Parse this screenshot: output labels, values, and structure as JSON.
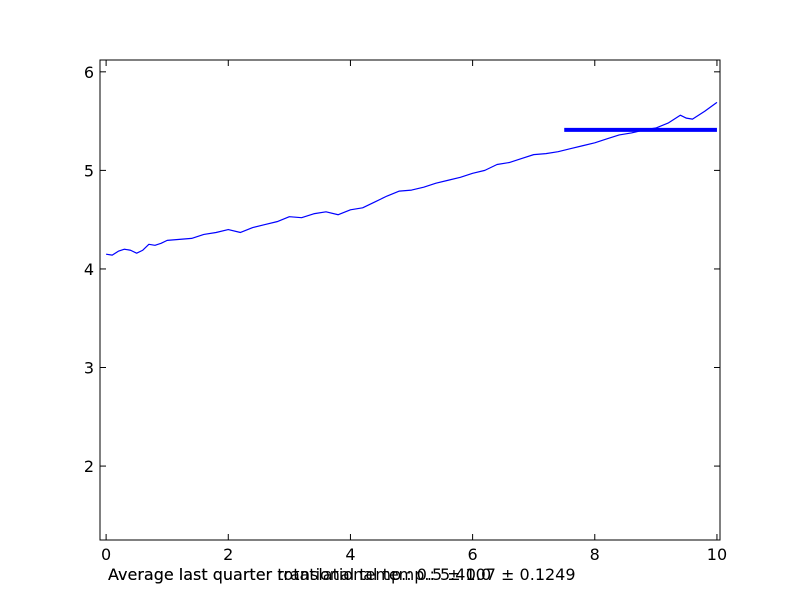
{
  "chart_data": {
    "type": "line",
    "xlim": [
      -0.1,
      10.05
    ],
    "ylim": [
      1.25,
      6.12
    ],
    "x_ticks": [
      0,
      2,
      4,
      6,
      8,
      10
    ],
    "x_tick_labels": [
      "0",
      "2",
      "4",
      "6",
      "8",
      "10"
    ],
    "y_ticks": [
      2,
      3,
      4,
      5,
      6
    ],
    "y_tick_labels": [
      "2",
      "3",
      "4",
      "5",
      "6"
    ],
    "grid": false,
    "series": [
      {
        "color": "#0000ff",
        "x": [
          0.0,
          0.1,
          0.2,
          0.3,
          0.4,
          0.5,
          0.6,
          0.7,
          0.8,
          0.9,
          1.0,
          1.2,
          1.4,
          1.6,
          1.8,
          2.0,
          2.2,
          2.4,
          2.6,
          2.8,
          3.0,
          3.2,
          3.4,
          3.6,
          3.8,
          4.0,
          4.2,
          4.4,
          4.6,
          4.8,
          5.0,
          5.2,
          5.4,
          5.6,
          5.8,
          6.0,
          6.2,
          6.4,
          6.6,
          6.8,
          7.0,
          7.2,
          7.4,
          7.6,
          7.8,
          8.0,
          8.2,
          8.4,
          8.6,
          8.8,
          9.0,
          9.2,
          9.4,
          9.5,
          9.6,
          9.8,
          10.0
        ],
        "y": [
          4.15,
          4.14,
          4.18,
          4.2,
          4.19,
          4.16,
          4.19,
          4.25,
          4.24,
          4.26,
          4.29,
          4.3,
          4.31,
          4.35,
          4.37,
          4.4,
          4.37,
          4.42,
          4.45,
          4.48,
          4.53,
          4.52,
          4.56,
          4.58,
          4.55,
          4.6,
          4.62,
          4.68,
          4.74,
          4.79,
          4.8,
          4.83,
          4.87,
          4.9,
          4.93,
          4.97,
          5.0,
          5.06,
          5.08,
          5.12,
          5.16,
          5.17,
          5.19,
          5.22,
          5.25,
          5.28,
          5.32,
          5.36,
          5.38,
          5.41,
          5.43,
          5.48,
          5.56,
          5.53,
          5.52,
          5.6,
          5.69
        ]
      },
      {
        "color": "#0000ff",
        "x": [
          7.5,
          10.0
        ],
        "y": [
          5.4107,
          5.4107
        ]
      }
    ],
    "annotations": [
      "Average last quarter rotational temp.: 0.5 ± 0.0",
      "Average last quarter translational temp.: 5.4107 ± 0.1249"
    ]
  }
}
